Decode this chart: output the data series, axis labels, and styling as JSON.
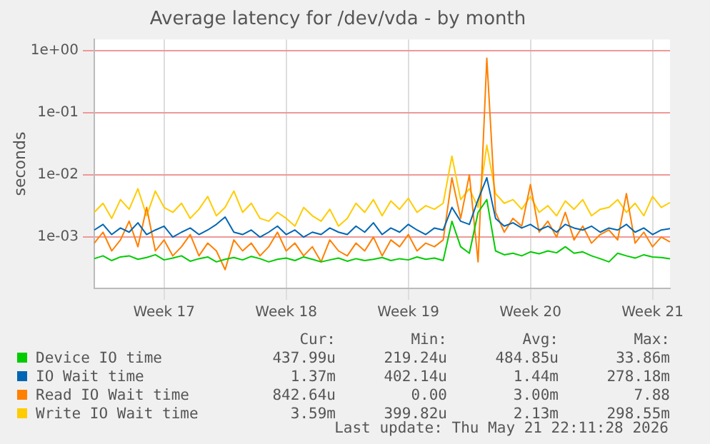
{
  "chart_data": {
    "type": "line",
    "title": "Average latency for /dev/vda - by month",
    "ylabel": "seconds",
    "log": true,
    "grid": true,
    "legend": "bottom",
    "marker": "none",
    "line_style": "solid",
    "categories": [
      null,
      null,
      null,
      null,
      null,
      null,
      null,
      null,
      "Week 17",
      null,
      null,
      null,
      null,
      null,
      null,
      null,
      null,
      null,
      null,
      null,
      null,
      null,
      "Week 18",
      null,
      null,
      null,
      null,
      null,
      null,
      null,
      null,
      null,
      null,
      null,
      null,
      null,
      "Week 19",
      null,
      null,
      null,
      null,
      null,
      null,
      null,
      null,
      null,
      null,
      null,
      null,
      null,
      "Week 20",
      null,
      null,
      null,
      null,
      null,
      null,
      null,
      null,
      null,
      null,
      null,
      null,
      null,
      "Week 21",
      null,
      null
    ],
    "ylim": [
      0.00015,
      1.5
    ],
    "yticks": [
      {
        "value": 0.001,
        "label": "1e-03"
      },
      {
        "value": 0.01,
        "label": "1e-02"
      },
      {
        "value": 0.1,
        "label": "1e-01"
      },
      {
        "value": 1,
        "label": "1e+00"
      }
    ],
    "series": [
      {
        "name": "Device IO time",
        "color": "#00cc00",
        "values": [
          0.00045,
          0.0005,
          0.00042,
          0.00048,
          0.0005,
          0.00044,
          0.00047,
          0.00052,
          0.00043,
          0.00046,
          0.0005,
          0.00041,
          0.00045,
          0.00048,
          0.0004,
          0.00044,
          0.00047,
          0.00043,
          0.00049,
          0.00045,
          0.0004,
          0.00044,
          0.00046,
          0.00042,
          0.00048,
          0.00044,
          0.0004,
          0.00043,
          0.00046,
          0.00041,
          0.00045,
          0.00042,
          0.00044,
          0.00047,
          0.00042,
          0.00045,
          0.00043,
          0.00048,
          0.00044,
          0.00046,
          0.00042,
          0.0018,
          0.0007,
          0.00055,
          0.0025,
          0.004,
          0.0006,
          0.00052,
          0.00055,
          0.0005,
          0.00058,
          0.00054,
          0.0006,
          0.00056,
          0.0007,
          0.00055,
          0.00058,
          0.0005,
          0.00045,
          0.0004,
          0.00055,
          0.0005,
          0.00046,
          0.00052,
          0.00048,
          0.00047,
          0.00045
        ]
      },
      {
        "name": "IO Wait time",
        "color": "#0066b3",
        "values": [
          0.0013,
          0.0016,
          0.0011,
          0.0014,
          0.0012,
          0.0017,
          0.0011,
          0.0013,
          0.0015,
          0.001,
          0.0012,
          0.0014,
          0.0011,
          0.0013,
          0.0016,
          0.0021,
          0.0012,
          0.0011,
          0.0013,
          0.001,
          0.0012,
          0.0015,
          0.0011,
          0.0013,
          0.001,
          0.0012,
          0.0011,
          0.0014,
          0.0012,
          0.0011,
          0.0015,
          0.0012,
          0.0017,
          0.0011,
          0.0014,
          0.0012,
          0.0016,
          0.0013,
          0.0011,
          0.0014,
          0.0013,
          0.003,
          0.0018,
          0.0016,
          0.004,
          0.009,
          0.002,
          0.0015,
          0.0017,
          0.0014,
          0.0016,
          0.0013,
          0.0015,
          0.0012,
          0.0016,
          0.0014,
          0.0013,
          0.0015,
          0.0012,
          0.0014,
          0.0013,
          0.0016,
          0.0012,
          0.0014,
          0.0011,
          0.0013,
          0.00137
        ]
      },
      {
        "name": "Read IO Wait time",
        "color": "#ff8000",
        "values": [
          0.0008,
          0.0012,
          0.0006,
          0.0009,
          0.0018,
          0.0007,
          0.003,
          0.0006,
          0.0009,
          0.0005,
          0.0007,
          0.0011,
          0.0005,
          0.0008,
          0.0006,
          0.0003,
          0.0009,
          0.0006,
          0.0008,
          0.0005,
          0.0007,
          0.0012,
          0.0006,
          0.0008,
          0.0005,
          0.0007,
          0.0004,
          0.0009,
          0.0006,
          0.0005,
          0.0008,
          0.0006,
          0.001,
          0.0005,
          0.0009,
          0.0007,
          0.0011,
          0.0006,
          0.0008,
          0.0007,
          0.0009,
          0.009,
          0.002,
          0.01,
          0.0004,
          0.75,
          0.0025,
          0.0012,
          0.002,
          0.0015,
          0.007,
          0.0012,
          0.0018,
          0.001,
          0.0025,
          0.0009,
          0.0015,
          0.0008,
          0.0011,
          0.0013,
          0.0009,
          0.005,
          0.0008,
          0.0012,
          0.0007,
          0.001,
          0.00084
        ]
      },
      {
        "name": "Write IO Wait time",
        "color": "#ffcc00",
        "values": [
          0.0025,
          0.0035,
          0.002,
          0.004,
          0.0028,
          0.006,
          0.0022,
          0.0055,
          0.003,
          0.0025,
          0.0035,
          0.002,
          0.0028,
          0.0045,
          0.0022,
          0.003,
          0.0055,
          0.0025,
          0.0035,
          0.002,
          0.0018,
          0.0025,
          0.002,
          0.0015,
          0.003,
          0.0022,
          0.0018,
          0.0028,
          0.0015,
          0.002,
          0.0035,
          0.0025,
          0.004,
          0.0022,
          0.0038,
          0.0028,
          0.0042,
          0.0025,
          0.0032,
          0.0028,
          0.0035,
          0.02,
          0.004,
          0.006,
          0.003,
          0.03,
          0.005,
          0.0035,
          0.004,
          0.0028,
          0.0045,
          0.0025,
          0.0032,
          0.0022,
          0.0038,
          0.0028,
          0.004,
          0.0022,
          0.0028,
          0.003,
          0.004,
          0.0025,
          0.0035,
          0.0022,
          0.0045,
          0.003,
          0.00359
        ]
      }
    ],
    "annotations": [
      "Cur:",
      "Min:",
      "Avg:",
      "Max:",
      "437.99u",
      "219.24u",
      "484.85u",
      "33.86m",
      "1.37m",
      "402.14u",
      "1.44m",
      "278.18m",
      "842.64u",
      "0.00",
      "3.00m",
      "7.88",
      "3.59m",
      "399.82u",
      "2.13m",
      "298.55m",
      "Last update: Thu May 21 22:11:28 2026"
    ]
  }
}
